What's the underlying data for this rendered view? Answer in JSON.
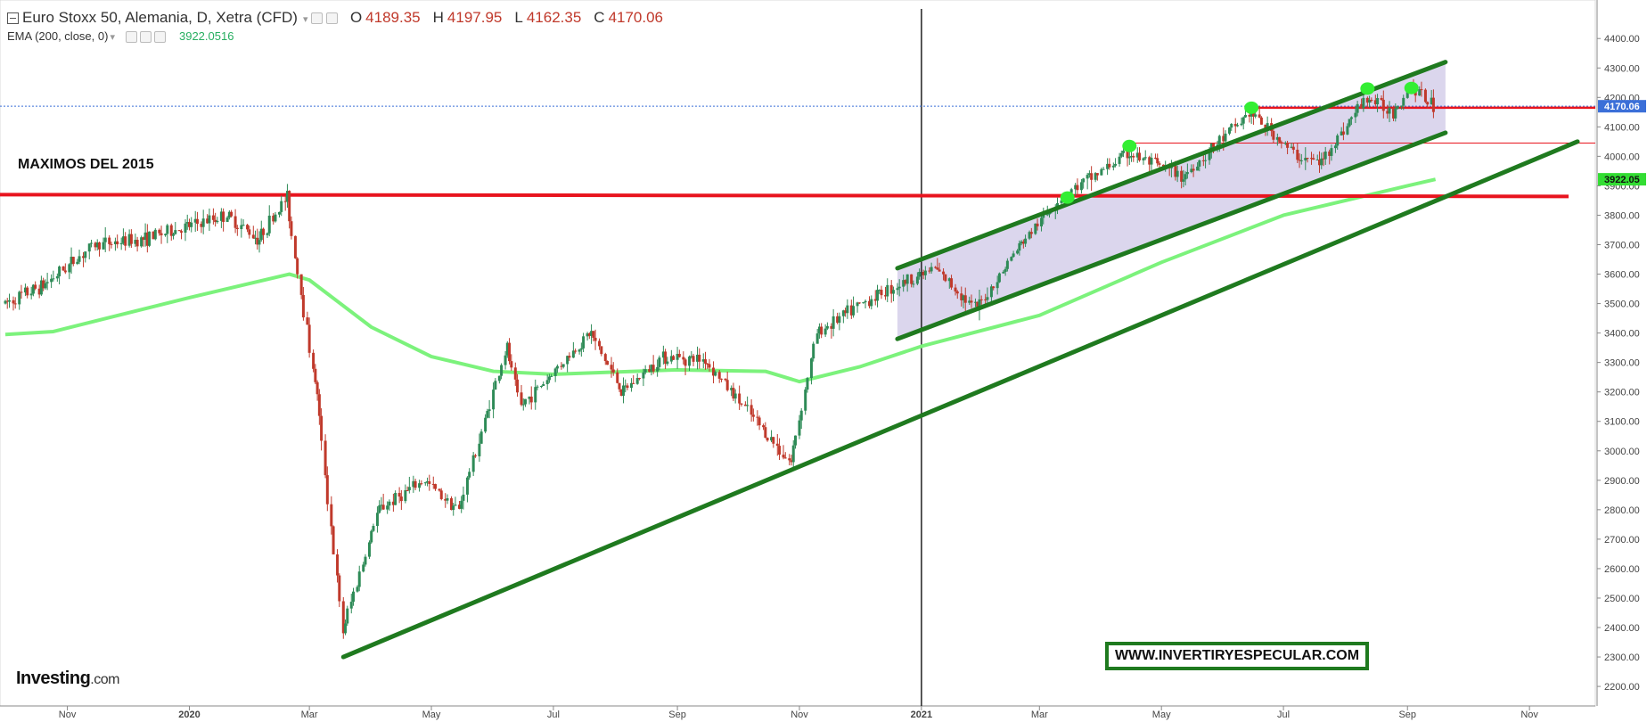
{
  "header": {
    "title": "Euro Stoxx 50, Alemania, D, Xetra (CFD)",
    "open_label": "O",
    "open": "4189.35",
    "high_label": "H",
    "high": "4197.95",
    "low_label": "L",
    "low": "4162.35",
    "close_label": "C",
    "close": "4170.06"
  },
  "indicator": {
    "label": "EMA (200, close, 0)",
    "value": "3922.0516"
  },
  "annotation": "MAXIMOS DEL 2015",
  "brand": {
    "name": "Investing",
    "suffix": ".com"
  },
  "watermark": "WWW.INVERTIRYESPECULAR.COM",
  "colors": {
    "up": "#2e8b57",
    "down": "#c0392b",
    "ema": "#7cf27c",
    "trend": "#1f7a1f",
    "resistance": "#e8141e",
    "channel_fill": "#d9d4ec",
    "last_price_bg": "#3b6fd8",
    "ema_price_bg": "#33dd33"
  },
  "chart_data": {
    "type": "candlestick",
    "x_tick_labels": [
      "Nov",
      "2020",
      "Mar",
      "May",
      "Jul",
      "Sep",
      "Nov",
      "2021",
      "Mar",
      "May",
      "Jul",
      "Sep",
      "Nov"
    ],
    "y_tick_labels": [
      "4400.00",
      "4300.00",
      "4200.00",
      "4100.00",
      "4000.00",
      "3900.00",
      "3800.00",
      "3700.00",
      "3600.00",
      "3500.00",
      "3400.00",
      "3300.00",
      "3200.00",
      "3100.00",
      "3000.00",
      "2900.00",
      "2800.00",
      "2700.00",
      "2600.00",
      "2500.00",
      "2400.00",
      "2300.00",
      "2200.00"
    ],
    "ylim": [
      2170,
      4440
    ],
    "last_price": 4170.06,
    "last_price_label": "4170.06",
    "ema_last": 3922.05,
    "ema_last_label": "3922.05",
    "resistance_2015": 3870,
    "resistance_recent": 4165,
    "resistance_mid": 4045,
    "vertical_marker": "2021",
    "price_path": [
      {
        "date": "2019-10-01",
        "price": 3500
      },
      {
        "date": "2019-10-20",
        "price": 3560
      },
      {
        "date": "2019-11-15",
        "price": 3700
      },
      {
        "date": "2019-12-10",
        "price": 3720
      },
      {
        "date": "2019-12-31",
        "price": 3760
      },
      {
        "date": "2020-01-20",
        "price": 3800
      },
      {
        "date": "2020-02-05",
        "price": 3720
      },
      {
        "date": "2020-02-19",
        "price": 3860
      },
      {
        "date": "2020-03-05",
        "price": 3200
      },
      {
        "date": "2020-03-18",
        "price": 2385
      },
      {
        "date": "2020-04-05",
        "price": 2800
      },
      {
        "date": "2020-04-28",
        "price": 2900
      },
      {
        "date": "2020-05-15",
        "price": 2800
      },
      {
        "date": "2020-06-08",
        "price": 3350
      },
      {
        "date": "2020-06-15",
        "price": 3150
      },
      {
        "date": "2020-07-20",
        "price": 3400
      },
      {
        "date": "2020-08-05",
        "price": 3200
      },
      {
        "date": "2020-08-25",
        "price": 3320
      },
      {
        "date": "2020-09-15",
        "price": 3310
      },
      {
        "date": "2020-10-28",
        "price": 2960
      },
      {
        "date": "2020-11-10",
        "price": 3400
      },
      {
        "date": "2020-12-10",
        "price": 3530
      },
      {
        "date": "2021-01-08",
        "price": 3620
      },
      {
        "date": "2021-01-29",
        "price": 3480
      },
      {
        "date": "2021-02-20",
        "price": 3700
      },
      {
        "date": "2021-03-12",
        "price": 3860
      },
      {
        "date": "2021-04-15",
        "price": 4010
      },
      {
        "date": "2021-05-12",
        "price": 3930
      },
      {
        "date": "2021-06-15",
        "price": 4150
      },
      {
        "date": "2021-07-08",
        "price": 4000
      },
      {
        "date": "2021-07-20",
        "price": 3980
      },
      {
        "date": "2021-08-12",
        "price": 4200
      },
      {
        "date": "2021-08-25",
        "price": 4150
      },
      {
        "date": "2021-09-03",
        "price": 4240
      },
      {
        "date": "2021-09-15",
        "price": 4170
      }
    ],
    "ema200": [
      {
        "date": "2019-10-01",
        "price": 3395
      },
      {
        "date": "2019-10-25",
        "price": 3405
      },
      {
        "date": "2020-01-01",
        "price": 3520
      },
      {
        "date": "2020-02-20",
        "price": 3600
      },
      {
        "date": "2020-03-01",
        "price": 3580
      },
      {
        "date": "2020-04-01",
        "price": 3420
      },
      {
        "date": "2020-05-01",
        "price": 3320
      },
      {
        "date": "2020-06-01",
        "price": 3270
      },
      {
        "date": "2020-07-01",
        "price": 3260
      },
      {
        "date": "2020-09-01",
        "price": 3275
      },
      {
        "date": "2020-10-15",
        "price": 3270
      },
      {
        "date": "2020-11-01",
        "price": 3235
      },
      {
        "date": "2020-12-01",
        "price": 3285
      },
      {
        "date": "2021-01-01",
        "price": 3355
      },
      {
        "date": "2021-03-01",
        "price": 3460
      },
      {
        "date": "2021-05-01",
        "price": 3640
      },
      {
        "date": "2021-07-01",
        "price": 3800
      },
      {
        "date": "2021-09-01",
        "price": 3900
      },
      {
        "date": "2021-09-15",
        "price": 3922
      }
    ],
    "trendlines": [
      {
        "from": {
          "date": "2020-03-18",
          "price": 2300
        },
        "to": {
          "date": "2021-11-25",
          "price": 4050
        }
      },
      {
        "from": {
          "date": "2020-12-20",
          "price": 3620
        },
        "to": {
          "date": "2021-09-20",
          "price": 4320
        }
      },
      {
        "from": {
          "date": "2020-12-20",
          "price": 3380
        },
        "to": {
          "date": "2021-09-20",
          "price": 4080
        }
      }
    ],
    "swing_high_markers": [
      {
        "date": "2021-03-15",
        "price": 3860
      },
      {
        "date": "2021-04-15",
        "price": 4035
      },
      {
        "date": "2021-06-15",
        "price": 4165
      },
      {
        "date": "2021-08-12",
        "price": 4230
      },
      {
        "date": "2021-09-03",
        "price": 4232
      }
    ]
  }
}
